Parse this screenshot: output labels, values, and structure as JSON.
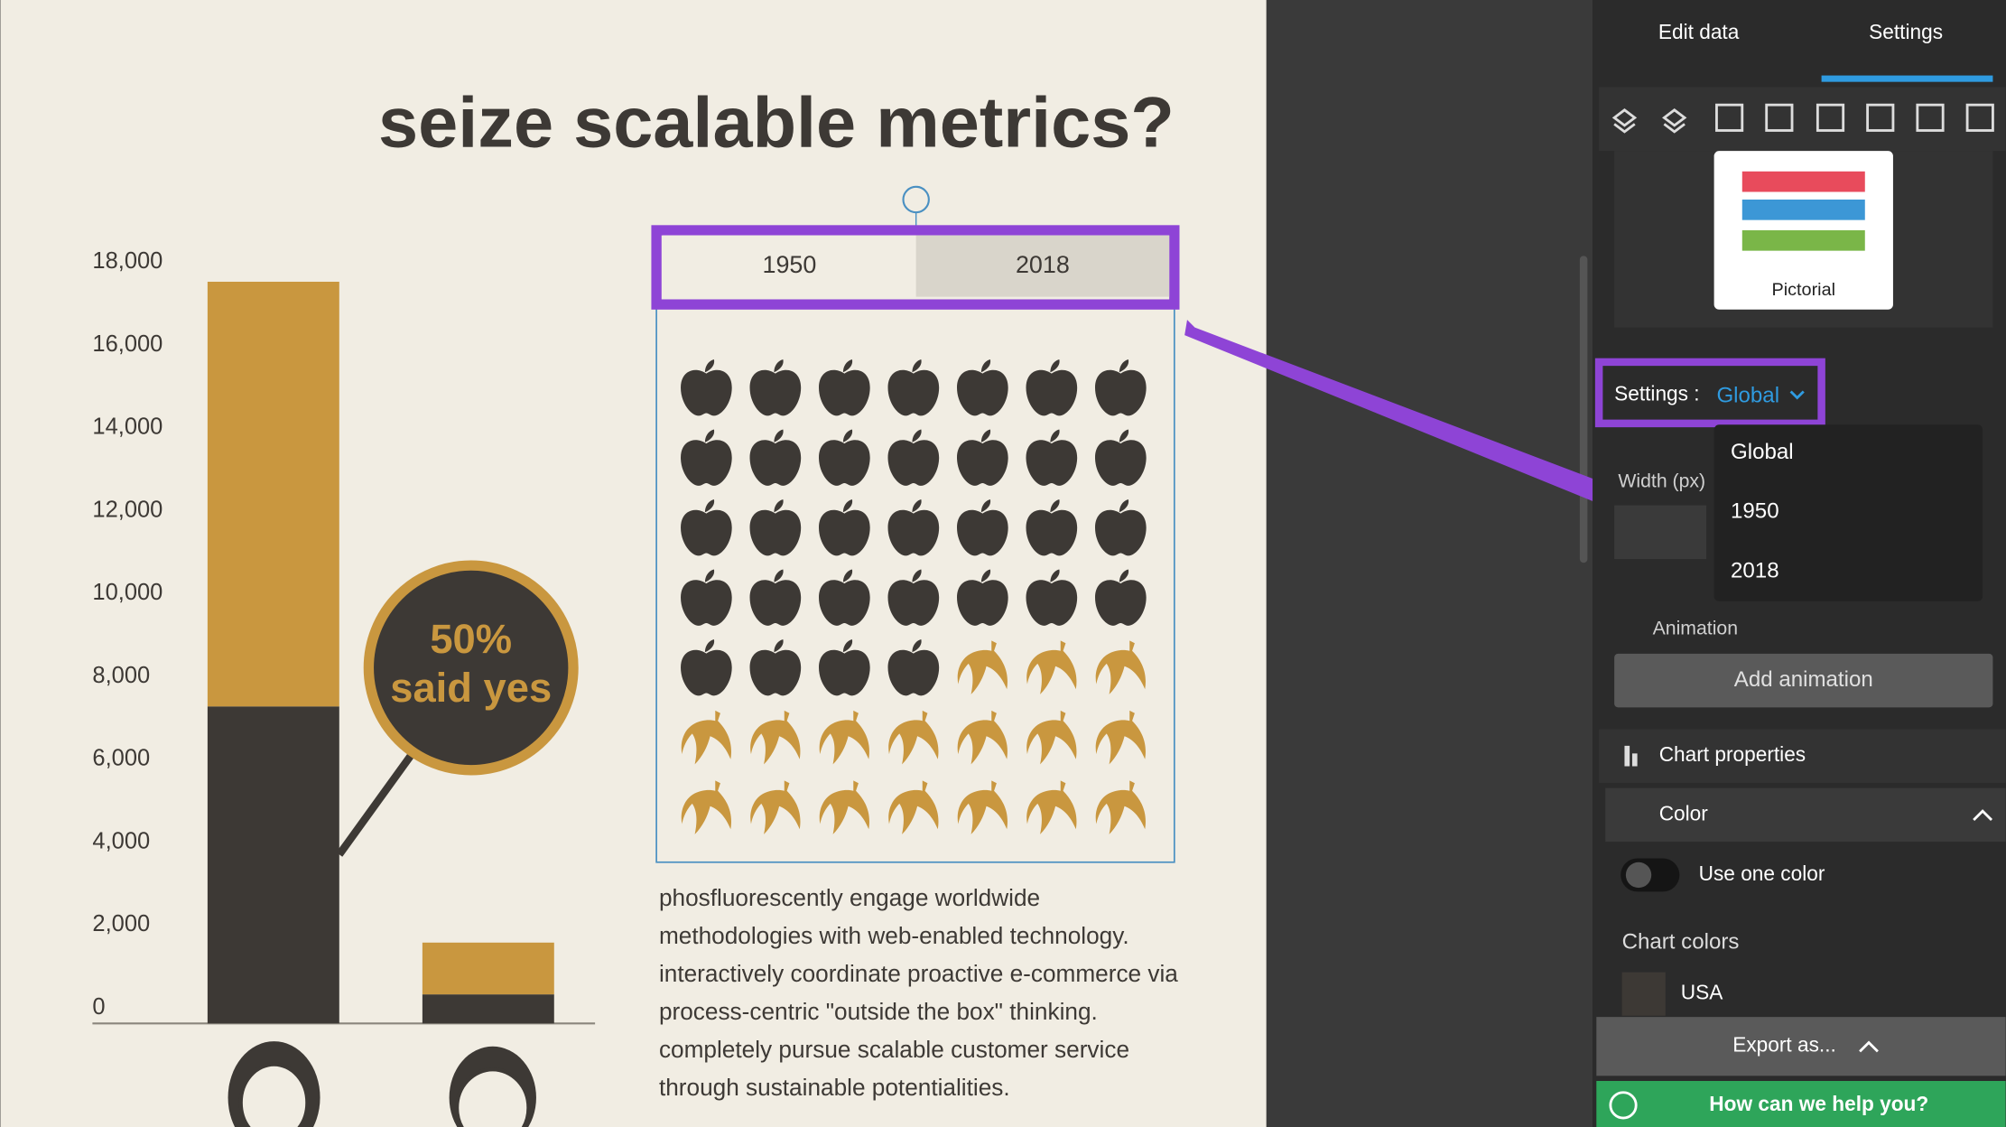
{
  "chart_data": [
    {
      "type": "bar",
      "stacked": true,
      "categories": [
        null,
        null
      ],
      "series": [
        {
          "color": "#3d3935",
          "values": [
            7650,
            700
          ]
        },
        {
          "color": "#c9973f",
          "values": [
            10250,
            1250
          ]
        }
      ],
      "ylim": [
        0,
        18000
      ],
      "yticks": [
        0,
        {
          "value": 2000,
          "label": "2,000"
        },
        {
          "value": 4000,
          "label": "4,000"
        },
        {
          "value": 6000,
          "label": "6,000"
        },
        {
          "value": 8000,
          "label": "8,000"
        },
        {
          "value": 10000,
          "label": "10,000"
        },
        {
          "value": 12000,
          "label": "12,000"
        },
        {
          "value": 14000,
          "label": "14,000"
        },
        {
          "value": 16000,
          "label": "16,000"
        },
        {
          "value": 18000,
          "label": "18,000"
        }
      ],
      "grid": false,
      "annotation": [
        "50%",
        "said yes"
      ]
    },
    {
      "type": "pictorial",
      "tabs": [
        "1950",
        "2018"
      ],
      "columns": 7,
      "series": [
        {
          "color": "#3d3935",
          "icon": "apple",
          "values": [
            32
          ]
        },
        {
          "color": "#c9973f",
          "icon": "banana",
          "values": [
            17
          ]
        }
      ]
    }
  ],
  "title": "seize scalable metrics?",
  "paragraph": [
    "phosfluorescently engage worldwide",
    "methodologies with web-enabled technology.",
    "interactively coordinate proactive e-commerce via",
    "process-centric \"outside the box\" thinking.",
    "completely pursue scalable customer service",
    "through sustainable potentialities."
  ],
  "panel": {
    "tabs": [
      "Edit data",
      "Settings"
    ],
    "chart_kind": "Pictorial",
    "settings_label": "Settings :",
    "settings_value": "Global",
    "dropdown": [
      "Global",
      "1950",
      "2018"
    ],
    "width_label": "Width (px)",
    "animation": "Animation",
    "add_animation": "Add animation",
    "chart_properties": "Chart properties",
    "color": "Color",
    "use_one_color": "Use one color",
    "chart_colors": "Chart colors",
    "color_item": "USA",
    "export": "Export as...",
    "help": "How can we help you?"
  }
}
